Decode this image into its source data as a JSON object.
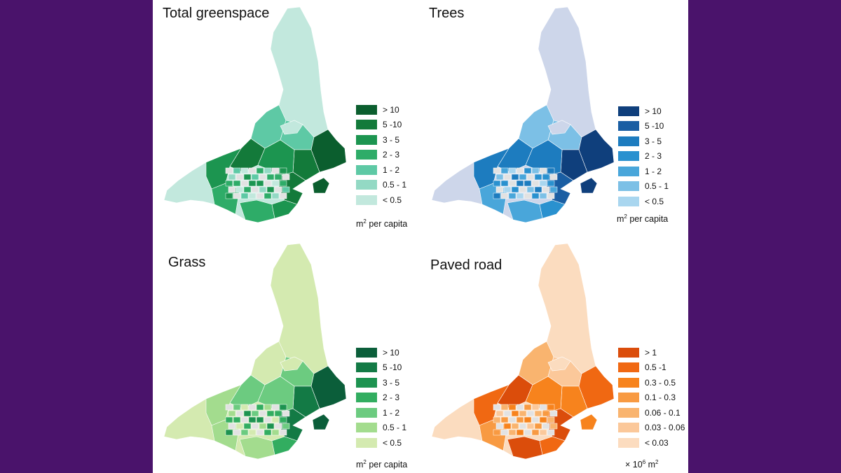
{
  "maps": [
    {
      "title": "Total greenspace",
      "unit_main": "m",
      "unit_sup": "2",
      "unit_tail": " per capita",
      "fill": "#c2e8dd",
      "legend": [
        {
          "label": "> 10",
          "color": "#0b5e2e"
        },
        {
          "label": "5 -10",
          "color": "#137a3a"
        },
        {
          "label": "3 - 5",
          "color": "#1c9550"
        },
        {
          "label": "2 - 3",
          "color": "#2eac68"
        },
        {
          "label": "1 - 2",
          "color": "#5ec9a5"
        },
        {
          "label": "0.5 - 1",
          "color": "#93d9c4"
        },
        {
          "label": "< 0.5",
          "color": "#c2e8dd"
        }
      ]
    },
    {
      "title": "Trees",
      "unit_main": "m",
      "unit_sup": "2",
      "unit_tail": " per capita",
      "fill": "#cdd6ea",
      "legend": [
        {
          "label": "> 10",
          "color": "#0f3f7c"
        },
        {
          "label": "5 -10",
          "color": "#1a5ea3"
        },
        {
          "label": "3 - 5",
          "color": "#1d7cbf"
        },
        {
          "label": "2 - 3",
          "color": "#2a91cf"
        },
        {
          "label": "1 - 2",
          "color": "#49a6da"
        },
        {
          "label": "0.5 - 1",
          "color": "#7cc0e6"
        },
        {
          "label": "< 0.5",
          "color": "#a9d6ef"
        }
      ]
    },
    {
      "title": "Grass",
      "unit_main": "m",
      "unit_sup": "2",
      "unit_tail": " per capita",
      "fill": "#d4eab0",
      "legend": [
        {
          "label": "> 10",
          "color": "#0b5e3a"
        },
        {
          "label": "5 -10",
          "color": "#137a45"
        },
        {
          "label": "3 - 5",
          "color": "#1d9350"
        },
        {
          "label": "2 - 3",
          "color": "#32ad60"
        },
        {
          "label": "1 - 2",
          "color": "#6ccb80"
        },
        {
          "label": "0.5 - 1",
          "color": "#a3dc8e"
        },
        {
          "label": "< 0.5",
          "color": "#d4eab0"
        }
      ]
    },
    {
      "title": "Paved road",
      "unit_main": "× 10",
      "unit_sup": "6",
      "unit_tail": "  m",
      "unit_sup2": "2",
      "fill": "#fbdcbf",
      "legend": [
        {
          "label": "> 1",
          "color": "#db4d0b"
        },
        {
          "label": "0.5 -1",
          "color": "#f06812"
        },
        {
          "label": "0.3 - 0.5",
          "color": "#f7831d"
        },
        {
          "label": "0.1 - 0.3",
          "color": "#f89a42"
        },
        {
          "label": "0.06 - 0.1",
          "color": "#f9b46f"
        },
        {
          "label": "0.03 - 0.06",
          "color": "#fbc89a"
        },
        {
          "label": "< 0.03",
          "color": "#fcdcbf"
        }
      ]
    }
  ]
}
